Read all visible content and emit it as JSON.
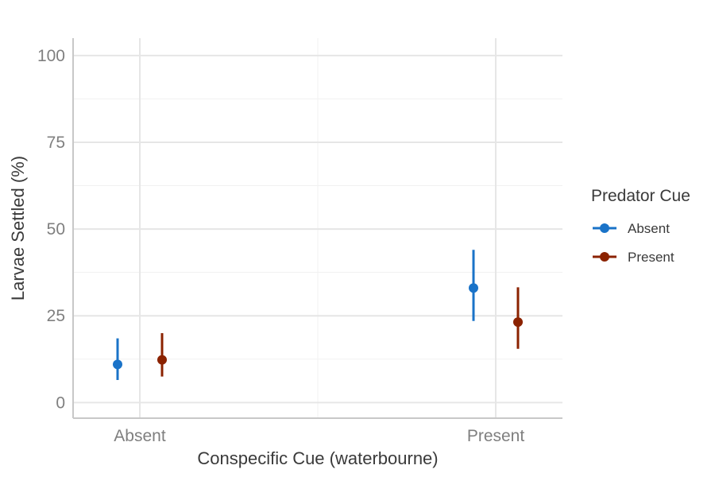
{
  "chart_data": {
    "type": "scatter",
    "subtype": "dodged point-range",
    "xlabel": "Conspecific Cue (waterbourne)",
    "ylabel": "Larvae Settled (%)",
    "categories": [
      "Absent",
      "Present"
    ],
    "ylim": [
      -4.5,
      105
    ],
    "yticks": [
      0,
      25,
      50,
      75,
      100
    ],
    "grid": true,
    "legend": {
      "title": "Predator Cue",
      "position": "right"
    },
    "series": [
      {
        "name": "Absent",
        "color": "#1a73c8",
        "values": [
          11,
          33
        ],
        "lower": [
          6.5,
          23.5
        ],
        "upper": [
          18.5,
          44
        ]
      },
      {
        "name": "Present",
        "color": "#8b2200",
        "values": [
          12.3,
          23.2
        ],
        "lower": [
          7.5,
          15.5
        ],
        "upper": [
          20,
          33.2
        ]
      }
    ]
  }
}
